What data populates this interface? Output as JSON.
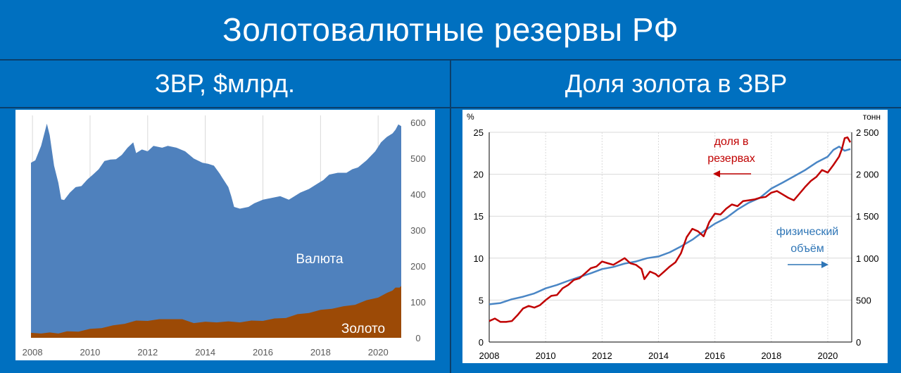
{
  "header": {
    "title": "Золотовалютные резервы РФ",
    "left_title": "ЗВР, $млрд.",
    "right_title": "Доля золота в ЗВР"
  },
  "colors": {
    "background": "#0070c0",
    "currency_area": "#4f81bd",
    "gold_area": "#9c4a06",
    "gold_share_line": "#c00000",
    "gold_volume_line": "#4a86c5"
  },
  "chart_data": [
    {
      "type": "area",
      "title": "ЗВР, $млрд.",
      "x_ticks": [
        "2008",
        "2010",
        "2012",
        "2014",
        "2016",
        "2018",
        "2020"
      ],
      "y_ticks": [
        "0",
        "100",
        "200",
        "300",
        "400",
        "500",
        "600"
      ],
      "xlim": [
        2007.9,
        2020.85
      ],
      "ylim": [
        0,
        620
      ],
      "y_axis_side": "right",
      "grid": "vertical",
      "series": [
        {
          "name": "Валюта",
          "kind": "total",
          "x": [
            2007.95,
            2008.1,
            2008.3,
            2008.5,
            2008.6,
            2008.75,
            2008.9,
            2009.0,
            2009.1,
            2009.3,
            2009.5,
            2009.7,
            2009.9,
            2010.1,
            2010.3,
            2010.5,
            2010.7,
            2010.9,
            2011.1,
            2011.3,
            2011.5,
            2011.6,
            2011.8,
            2012.0,
            2012.2,
            2012.5,
            2012.7,
            2013.0,
            2013.3,
            2013.6,
            2013.9,
            2014.1,
            2014.3,
            2014.5,
            2014.6,
            2014.8,
            2014.9,
            2015.0,
            2015.2,
            2015.5,
            2015.7,
            2016.0,
            2016.3,
            2016.6,
            2016.9,
            2017.0,
            2017.3,
            2017.6,
            2017.9,
            2018.1,
            2018.3,
            2018.6,
            2018.9,
            2019.1,
            2019.3,
            2019.6,
            2019.9,
            2020.1,
            2020.3,
            2020.5,
            2020.6,
            2020.7,
            2020.8
          ],
          "values": [
            488,
            495,
            535,
            597,
            565,
            480,
            432,
            386,
            384,
            405,
            420,
            423,
            441,
            455,
            470,
            493,
            497,
            498,
            510,
            530,
            545,
            515,
            525,
            520,
            535,
            530,
            535,
            530,
            520,
            500,
            488,
            485,
            480,
            458,
            445,
            420,
            395,
            365,
            360,
            365,
            375,
            385,
            390,
            395,
            385,
            390,
            405,
            415,
            430,
            440,
            455,
            460,
            460,
            470,
            475,
            495,
            520,
            545,
            560,
            570,
            580,
            595,
            590
          ]
        },
        {
          "name": "Золото",
          "kind": "part",
          "x": [
            2007.95,
            2008.3,
            2008.6,
            2008.9,
            2009.2,
            2009.6,
            2010.0,
            2010.4,
            2010.8,
            2011.2,
            2011.6,
            2012.0,
            2012.4,
            2012.8,
            2013.2,
            2013.6,
            2014.0,
            2014.4,
            2014.8,
            2015.2,
            2015.6,
            2016.0,
            2016.4,
            2016.8,
            2017.2,
            2017.6,
            2018.0,
            2018.4,
            2018.8,
            2019.2,
            2019.6,
            2020.0,
            2020.3,
            2020.5,
            2020.6,
            2020.75,
            2020.8
          ],
          "values": [
            14,
            15,
            15,
            15,
            18,
            20,
            25,
            30,
            35,
            42,
            48,
            50,
            52,
            55,
            52,
            44,
            45,
            46,
            46,
            46,
            48,
            50,
            54,
            58,
            66,
            72,
            78,
            84,
            88,
            95,
            105,
            115,
            125,
            135,
            140,
            143,
            145
          ]
        }
      ],
      "labels": [
        "Валюта",
        "Золото"
      ]
    },
    {
      "type": "line",
      "title": "Доля золота в ЗВР",
      "x_ticks": [
        "2008",
        "2010",
        "2012",
        "2014",
        "2016",
        "2018",
        "2020"
      ],
      "xlim": [
        2008,
        2020.85
      ],
      "y_left_unit": "%",
      "y_left_ticks": [
        "0",
        "5",
        "10",
        "15",
        "20",
        "25"
      ],
      "ylim_left": [
        0,
        25
      ],
      "y_right_unit": "тонн",
      "y_right_ticks": [
        "0",
        "500",
        "1 000",
        "1 500",
        "2 000",
        "2 500"
      ],
      "ylim_right": [
        0,
        2500
      ],
      "grid": "both",
      "series": [
        {
          "name": "доля в резервах",
          "axis": "left",
          "x": [
            2008.0,
            2008.2,
            2008.4,
            2008.6,
            2008.8,
            2009.0,
            2009.2,
            2009.4,
            2009.6,
            2009.8,
            2010.0,
            2010.2,
            2010.4,
            2010.6,
            2010.8,
            2011.0,
            2011.2,
            2011.4,
            2011.6,
            2011.8,
            2012.0,
            2012.2,
            2012.4,
            2012.6,
            2012.8,
            2013.0,
            2013.2,
            2013.4,
            2013.5,
            2013.7,
            2013.9,
            2014.0,
            2014.2,
            2014.4,
            2014.6,
            2014.8,
            2015.0,
            2015.2,
            2015.4,
            2015.6,
            2015.8,
            2016.0,
            2016.2,
            2016.4,
            2016.6,
            2016.8,
            2017.0,
            2017.2,
            2017.4,
            2017.6,
            2017.8,
            2018.0,
            2018.2,
            2018.4,
            2018.6,
            2018.8,
            2019.0,
            2019.2,
            2019.4,
            2019.6,
            2019.8,
            2020.0,
            2020.2,
            2020.4,
            2020.5,
            2020.6,
            2020.7,
            2020.8
          ],
          "values": [
            2.5,
            2.8,
            2.4,
            2.4,
            2.5,
            3.2,
            4.0,
            4.3,
            4.1,
            4.4,
            5.0,
            5.5,
            5.6,
            6.4,
            6.8,
            7.4,
            7.6,
            8.2,
            8.8,
            9.0,
            9.6,
            9.4,
            9.2,
            9.6,
            10.0,
            9.4,
            9.2,
            8.7,
            7.5,
            8.4,
            8.1,
            7.8,
            8.4,
            9.0,
            9.5,
            10.6,
            12.5,
            13.5,
            13.2,
            12.6,
            14.3,
            15.3,
            15.2,
            15.9,
            16.4,
            16.2,
            16.8,
            16.9,
            17.0,
            17.2,
            17.3,
            17.8,
            18.0,
            17.6,
            17.2,
            16.9,
            17.7,
            18.5,
            19.2,
            19.7,
            20.5,
            20.2,
            21.1,
            22.1,
            23.0,
            24.3,
            24.4,
            23.8
          ]
        },
        {
          "name": "физический объём",
          "axis": "right",
          "x": [
            2008.0,
            2008.4,
            2008.8,
            2009.2,
            2009.6,
            2010.0,
            2010.4,
            2010.8,
            2011.2,
            2011.6,
            2012.0,
            2012.4,
            2012.8,
            2013.2,
            2013.6,
            2014.0,
            2014.4,
            2014.8,
            2015.2,
            2015.6,
            2016.0,
            2016.4,
            2016.8,
            2017.2,
            2017.6,
            2018.0,
            2018.4,
            2018.8,
            2019.2,
            2019.6,
            2020.0,
            2020.2,
            2020.4,
            2020.6,
            2020.8
          ],
          "values": [
            450,
            465,
            510,
            540,
            580,
            640,
            680,
            730,
            775,
            820,
            870,
            895,
            935,
            960,
            1000,
            1020,
            1070,
            1140,
            1220,
            1320,
            1410,
            1480,
            1580,
            1660,
            1720,
            1830,
            1900,
            1975,
            2050,
            2140,
            2210,
            2290,
            2330,
            2280,
            2300
          ]
        }
      ],
      "annotations": [
        "доля в резервах",
        "физический объём"
      ]
    }
  ]
}
